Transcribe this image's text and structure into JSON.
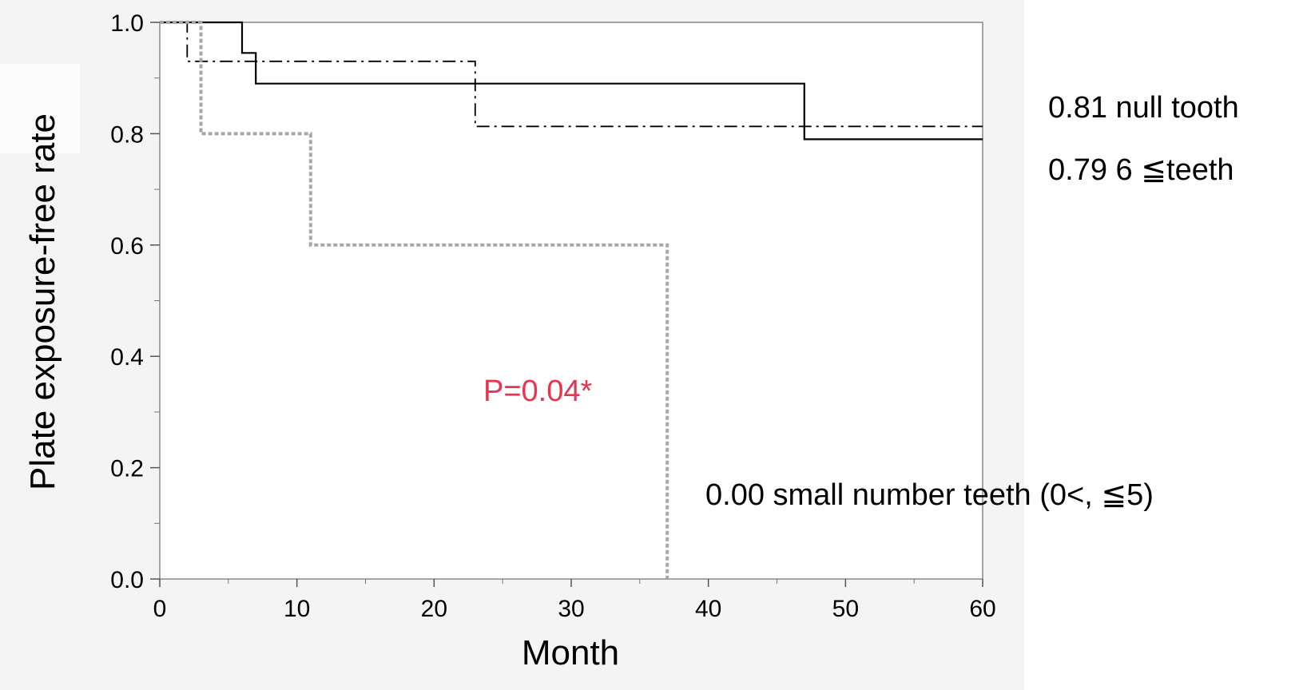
{
  "chart_data": {
    "type": "line",
    "title": "",
    "xlabel": "Month",
    "ylabel": "Plate exposure-free rate",
    "xlim": [
      0,
      60
    ],
    "ylim": [
      0,
      1
    ],
    "x_ticks": [
      "0",
      "10",
      "20",
      "30",
      "40",
      "50",
      "60"
    ],
    "y_ticks": [
      "0.0",
      "0.2",
      "0.4",
      "0.6",
      "0.8",
      "1.0"
    ],
    "grid": false,
    "legend": "none",
    "series": [
      {
        "label": "0.81  null tooth",
        "style": "dash-dot",
        "color": "#000000",
        "points": [
          [
            0,
            1.0
          ],
          [
            2,
            1.0
          ],
          [
            2,
            0.93
          ],
          [
            23,
            0.93
          ],
          [
            23,
            0.813
          ],
          [
            60,
            0.813
          ]
        ]
      },
      {
        "label": "0.79 6 ≦teeth",
        "style": "solid",
        "color": "#000000",
        "points": [
          [
            0,
            1.0
          ],
          [
            6,
            1.0
          ],
          [
            6,
            0.945
          ],
          [
            7,
            0.945
          ],
          [
            7,
            0.89
          ],
          [
            47,
            0.89
          ],
          [
            47,
            0.79
          ],
          [
            60,
            0.79
          ]
        ]
      },
      {
        "label": "0.00 small number teeth (0<, ≦5)",
        "style": "dotted",
        "color": "#a6a6a6",
        "points": [
          [
            0,
            1.0
          ],
          [
            3,
            1.0
          ],
          [
            3,
            0.8
          ],
          [
            11,
            0.8
          ],
          [
            11,
            0.6
          ],
          [
            37,
            0.6
          ],
          [
            37,
            0.0
          ]
        ]
      }
    ],
    "annotations": {
      "p_value": "P=0.04*",
      "p_value_color": "#e8344e"
    }
  }
}
